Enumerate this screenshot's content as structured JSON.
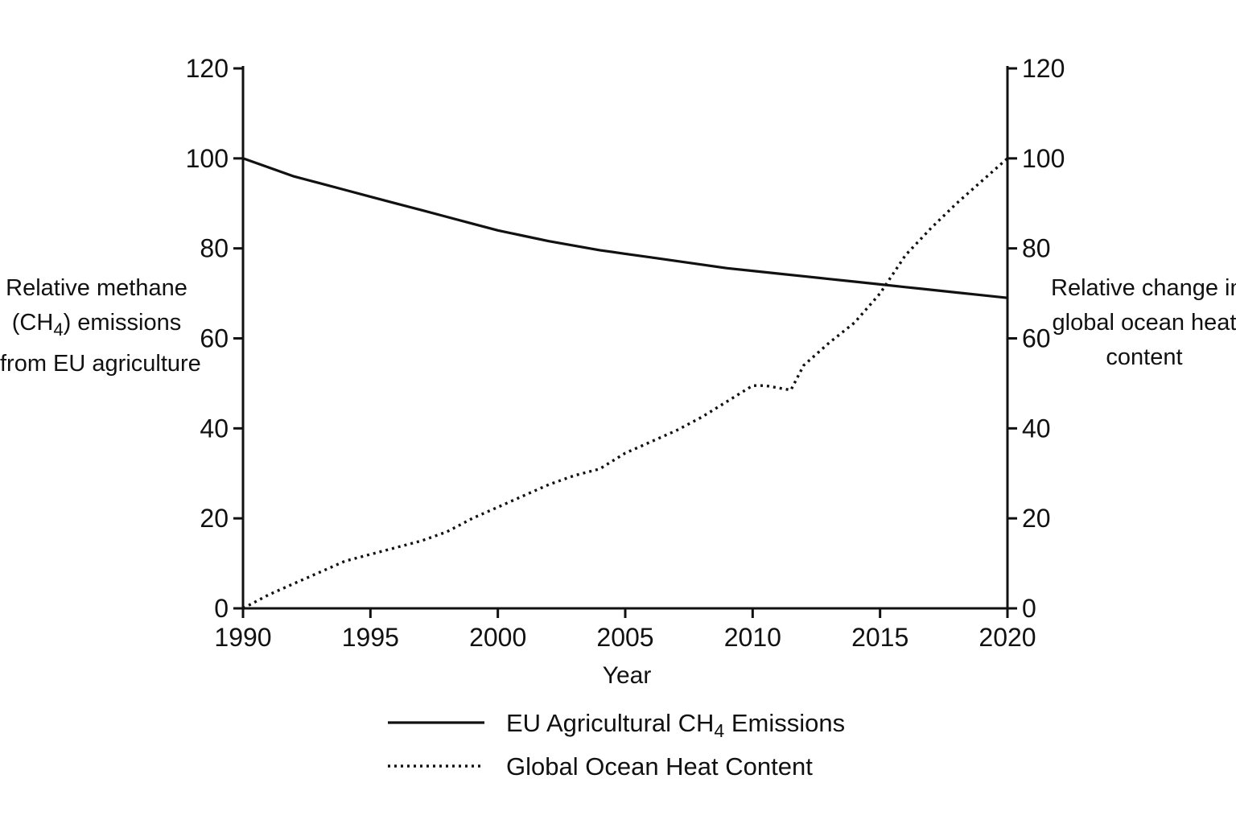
{
  "chart_data": {
    "type": "line",
    "xlabel": "Year",
    "ylabel_left": [
      "Relative methane",
      "(CH",
      "4",
      ") emissions",
      "from EU agriculture"
    ],
    "ylabel_right": [
      "Relative change in",
      "global ocean heat",
      "content"
    ],
    "xlim": [
      1990,
      2020
    ],
    "ylim_left": [
      0,
      120
    ],
    "ylim_right": [
      0,
      120
    ],
    "x_ticks": [
      "1990",
      "1995",
      "2000",
      "2005",
      "2010",
      "2015",
      "2020"
    ],
    "y_ticks_left": [
      "0",
      "20",
      "40",
      "60",
      "80",
      "100",
      "120"
    ],
    "y_ticks_right": [
      "0",
      "20",
      "40",
      "60",
      "80",
      "100",
      "120"
    ],
    "grid": false,
    "legend_position": "bottom-center",
    "series": [
      {
        "name": "EU Agricultural CH4 Emissions",
        "legend_parts": [
          "EU Agricultural CH",
          "4",
          " Emissions"
        ],
        "style": "solid",
        "axis": "left",
        "x": [
          1990,
          1991,
          1992,
          1993,
          1994,
          1995,
          1996,
          1997,
          1998,
          1999,
          2000,
          2001,
          2002,
          2003,
          2004,
          2005,
          2006,
          2007,
          2008,
          2009,
          2010,
          2011,
          2012,
          2013,
          2014,
          2015,
          2016,
          2017,
          2018,
          2019,
          2020
        ],
        "values": [
          100,
          98,
          96,
          94.5,
          93,
          91.5,
          90,
          88.5,
          87,
          85.5,
          84,
          82.8,
          81.6,
          80.6,
          79.6,
          78.8,
          78,
          77.2,
          76.4,
          75.6,
          75,
          74.4,
          73.8,
          73.2,
          72.6,
          72,
          71.4,
          70.8,
          70.2,
          69.6,
          69
        ]
      },
      {
        "name": "Global Ocean Heat Content",
        "legend_parts": [
          "Global Ocean Heat Content"
        ],
        "style": "dotted",
        "axis": "right",
        "x": [
          1990,
          1991,
          1992,
          1993,
          1994,
          1995,
          1996,
          1997,
          1998,
          1999,
          2000,
          2001,
          2002,
          2003,
          2004,
          2005,
          2006,
          2007,
          2008,
          2009,
          2010,
          2010.5,
          2011,
          2011.5,
          2012,
          2013,
          2014,
          2015,
          2016,
          2017,
          2018,
          2019,
          2020
        ],
        "values": [
          0,
          3,
          5.5,
          8,
          10.5,
          12,
          13.5,
          15,
          17,
          20,
          22.5,
          25,
          27.5,
          29.5,
          31,
          34.5,
          37,
          39.5,
          42.5,
          46,
          49.5,
          49.5,
          49,
          48.5,
          54,
          59,
          63.5,
          70,
          78.5,
          84.5,
          90,
          95,
          100
        ]
      }
    ]
  }
}
